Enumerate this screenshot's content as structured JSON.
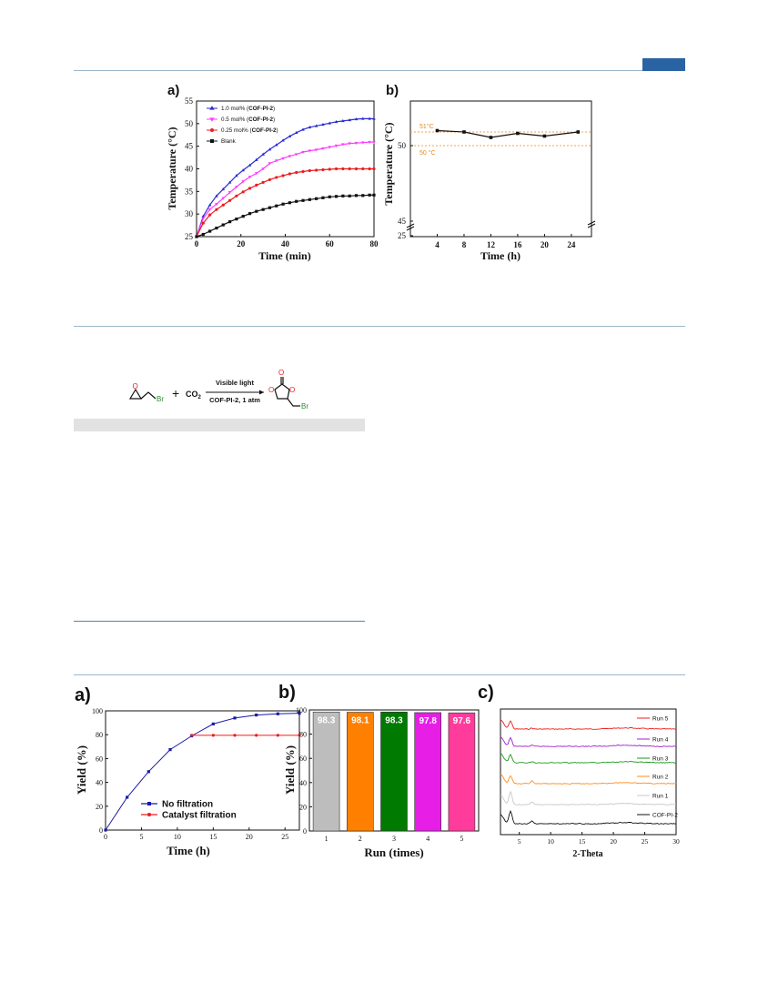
{
  "panel_labels": {
    "top_a": "a)",
    "top_b": "b)",
    "bot_a": "a)",
    "bot_b": "b)",
    "bot_c": "c)"
  },
  "reaction": {
    "plus": "+",
    "co2": "CO",
    "co2_sub": "2",
    "arrow_top": "Visible light",
    "arrow_bottom": "COF-PI-2, 1 atm",
    "br1": "Br",
    "br2": "Br",
    "o": "O"
  },
  "colors": {
    "blue": "#2b2bd6",
    "magenta": "#ff3cff",
    "red": "#ee1c1c",
    "black": "#111111",
    "orange": "#f0a050",
    "rule": "#9db7c9",
    "accent": "#2a63a4"
  },
  "chart_data": [
    {
      "id": "temp_vs_time",
      "type": "line",
      "xlabel": "Time (min)",
      "ylabel": "Temperature (°C)",
      "xlim": [
        0,
        80
      ],
      "ylim": [
        25,
        55
      ],
      "xticks": [
        "0",
        "20",
        "40",
        "60",
        "80"
      ],
      "yticks": [
        "25",
        "30",
        "35",
        "40",
        "45",
        "50",
        "55"
      ],
      "legend_position": "top-left",
      "series": [
        {
          "name": "1.0 mol% (COF-PI-2)",
          "label_plain": "1.0 mol% (",
          "label_bold": "COF-PI-2",
          "label_end": ")",
          "color": "#2b2bd6",
          "marker": "triangle",
          "points": [
            [
              0,
              25
            ],
            [
              3,
              29.5
            ],
            [
              6,
              32
            ],
            [
              9,
              34
            ],
            [
              12,
              35.5
            ],
            [
              15,
              37
            ],
            [
              18,
              38.5
            ],
            [
              21,
              39.7
            ],
            [
              24,
              40.8
            ],
            [
              27,
              42
            ],
            [
              30,
              43.2
            ],
            [
              33,
              44.3
            ],
            [
              36,
              45.3
            ],
            [
              39,
              46.3
            ],
            [
              42,
              47.2
            ],
            [
              45,
              48
            ],
            [
              48,
              48.7
            ],
            [
              51,
              49.2
            ],
            [
              54,
              49.5
            ],
            [
              57,
              49.8
            ],
            [
              60,
              50.1
            ],
            [
              63,
              50.4
            ],
            [
              66,
              50.6
            ],
            [
              69,
              50.8
            ],
            [
              72,
              51
            ],
            [
              75,
              51.1
            ],
            [
              78,
              51.1
            ],
            [
              80,
              51.1
            ]
          ]
        },
        {
          "name": "0.5 mol% (COF-PI-2)",
          "label_plain": "0.5 mol% (",
          "label_bold": "COF-PI-2",
          "label_end": ")",
          "color": "#ff3cff",
          "marker": "triangle-down",
          "points": [
            [
              0,
              25
            ],
            [
              3,
              29
            ],
            [
              6,
              31
            ],
            [
              9,
              32.2
            ],
            [
              12,
              33.5
            ],
            [
              15,
              34.8
            ],
            [
              18,
              36
            ],
            [
              21,
              37.2
            ],
            [
              24,
              38.2
            ],
            [
              27,
              39
            ],
            [
              30,
              40
            ],
            [
              33,
              41.2
            ],
            [
              36,
              41.8
            ],
            [
              39,
              42.3
            ],
            [
              42,
              42.8
            ],
            [
              45,
              43.2
            ],
            [
              48,
              43.7
            ],
            [
              51,
              44
            ],
            [
              54,
              44.2
            ],
            [
              57,
              44.5
            ],
            [
              60,
              44.8
            ],
            [
              63,
              45.1
            ],
            [
              66,
              45.4
            ],
            [
              69,
              45.6
            ],
            [
              72,
              45.7
            ],
            [
              75,
              45.8
            ],
            [
              78,
              45.9
            ],
            [
              80,
              45.9
            ]
          ]
        },
        {
          "name": "0.25 mol% (COF-PI-2)",
          "label_plain": "0.25 mol% (",
          "label_bold": "COF-PI-2",
          "label_end": ")",
          "color": "#ee1c1c",
          "marker": "circle",
          "points": [
            [
              0,
              25
            ],
            [
              3,
              28
            ],
            [
              6,
              29.8
            ],
            [
              9,
              31
            ],
            [
              12,
              32
            ],
            [
              15,
              33
            ],
            [
              18,
              34
            ],
            [
              21,
              34.9
            ],
            [
              24,
              35.7
            ],
            [
              27,
              36.4
            ],
            [
              30,
              37
            ],
            [
              33,
              37.6
            ],
            [
              36,
              38.1
            ],
            [
              39,
              38.5
            ],
            [
              42,
              38.9
            ],
            [
              45,
              39.2
            ],
            [
              48,
              39.4
            ],
            [
              51,
              39.6
            ],
            [
              54,
              39.7
            ],
            [
              57,
              39.8
            ],
            [
              60,
              39.9
            ],
            [
              63,
              40
            ],
            [
              66,
              40
            ],
            [
              69,
              40
            ],
            [
              72,
              40
            ],
            [
              75,
              40
            ],
            [
              78,
              40
            ],
            [
              80,
              40
            ]
          ]
        },
        {
          "name": "Blank",
          "label_plain": "Blank",
          "label_bold": "",
          "label_end": "",
          "color": "#111111",
          "marker": "square",
          "points": [
            [
              0,
              25
            ],
            [
              3,
              25.5
            ],
            [
              6,
              26.2
            ],
            [
              9,
              26.9
            ],
            [
              12,
              27.6
            ],
            [
              15,
              28.3
            ],
            [
              18,
              28.9
            ],
            [
              21,
              29.5
            ],
            [
              24,
              30.1
            ],
            [
              27,
              30.6
            ],
            [
              30,
              31
            ],
            [
              33,
              31.4
            ],
            [
              36,
              31.8
            ],
            [
              39,
              32.2
            ],
            [
              42,
              32.5
            ],
            [
              45,
              32.8
            ],
            [
              48,
              33
            ],
            [
              51,
              33.2
            ],
            [
              54,
              33.4
            ],
            [
              57,
              33.6
            ],
            [
              60,
              33.8
            ],
            [
              63,
              33.9
            ],
            [
              66,
              34
            ],
            [
              69,
              34
            ],
            [
              72,
              34.1
            ],
            [
              75,
              34.1
            ],
            [
              78,
              34.2
            ],
            [
              80,
              34.2
            ]
          ]
        }
      ]
    },
    {
      "id": "temp_stability",
      "type": "line",
      "xlabel": "Time (h)",
      "ylabel": "Temperature (°C)",
      "xticks": [
        "4",
        "8",
        "12",
        "16",
        "20",
        "24"
      ],
      "yticks": [
        "25",
        "45",
        "50"
      ],
      "x": [
        4,
        8,
        12,
        16,
        20,
        25
      ],
      "values": [
        51.1,
        51.0,
        50.6,
        50.9,
        50.7,
        51.0
      ],
      "refs": [
        {
          "label": "51°C",
          "value": 51
        },
        {
          "label": "50 °C",
          "value": 50
        }
      ],
      "axis_break": true
    },
    {
      "id": "yield_vs_time",
      "type": "line",
      "xlabel": "Time (h)",
      "ylabel": "Yield (%)",
      "xlim": [
        0,
        27
      ],
      "ylim": [
        0,
        100
      ],
      "xticks": [
        "0",
        "5",
        "10",
        "15",
        "20",
        "25"
      ],
      "yticks": [
        "0",
        "20",
        "40",
        "60",
        "80",
        "100"
      ],
      "legend_position": "bottom-right",
      "series": [
        {
          "name": "No filtration",
          "color": "#1a1aa8",
          "marker": "square",
          "x": [
            0,
            3,
            6,
            9,
            12,
            15,
            18,
            21,
            24,
            27
          ],
          "values": [
            0,
            27.5,
            49,
            67.5,
            79,
            89,
            94,
            96.5,
            97.5,
            98
          ]
        },
        {
          "name": "Catalyst  filtration",
          "color": "#ee1c1c",
          "marker": "circle",
          "x": [
            12,
            15,
            18,
            21,
            24,
            27
          ],
          "values": [
            79.5,
            79.5,
            79.5,
            79.5,
            79.5,
            79.5
          ]
        }
      ]
    },
    {
      "id": "recycle_runs",
      "type": "bar",
      "xlabel": "Run (times)",
      "ylabel": "Yield (%)",
      "ylim": [
        0,
        100
      ],
      "yticks": [
        "0",
        "20",
        "40",
        "60",
        "80",
        "100"
      ],
      "categories": [
        "1",
        "2",
        "3",
        "4",
        "5"
      ],
      "values": [
        98.3,
        98.1,
        98.3,
        97.8,
        97.6
      ],
      "labels": [
        "98.3",
        "98.1",
        "98.3",
        "97.8",
        "97.6"
      ],
      "colors": [
        "#bdbdbd",
        "#ff8000",
        "#007a00",
        "#e61ee6",
        "#ff3c9c"
      ]
    },
    {
      "id": "pxrd",
      "type": "line",
      "xlabel": "2-Theta",
      "xlim": [
        2,
        30
      ],
      "xticks": [
        "5",
        "10",
        "15",
        "20",
        "25",
        "30"
      ],
      "legend_position": "right",
      "series": [
        {
          "name": "Run 5",
          "color": "#ee1c1c"
        },
        {
          "name": "Run 4",
          "color": "#a020d0"
        },
        {
          "name": "Run 3",
          "color": "#1a9a1a"
        },
        {
          "name": "Run 2",
          "color": "#ff8c1a"
        },
        {
          "name": "Run 1",
          "color": "#c8c8c8"
        },
        {
          "name": "COF-PI-2",
          "color": "#111111"
        }
      ]
    }
  ]
}
